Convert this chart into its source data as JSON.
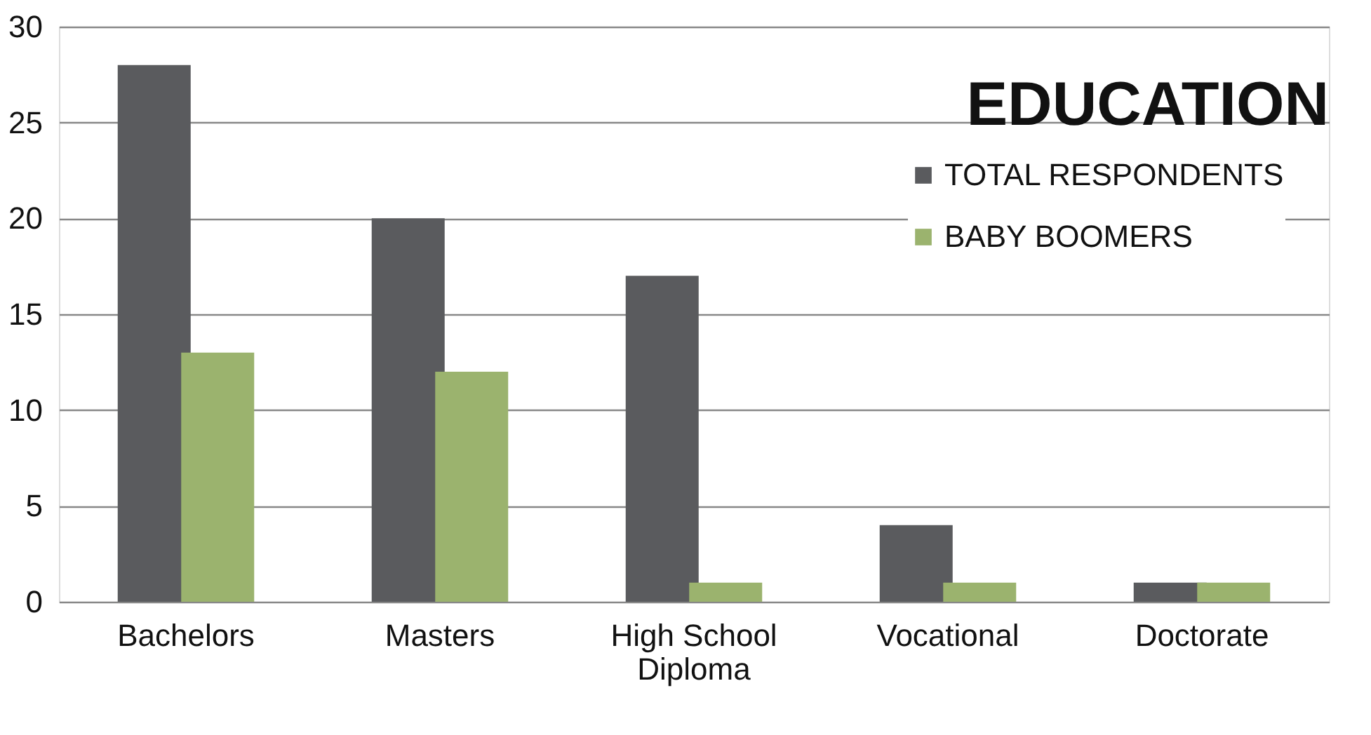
{
  "chart_data": {
    "type": "bar",
    "title": "EDUCATION",
    "categories": [
      "Bachelors",
      "Masters",
      "High School Diploma",
      "Vocational",
      "Doctorate"
    ],
    "series": [
      {
        "name": "TOTAL RESPONDENTS",
        "color": "#5a5b5e",
        "values": [
          28,
          20,
          17,
          4,
          1
        ]
      },
      {
        "name": "BABY BOOMERS",
        "color": "#9bb36e",
        "values": [
          13,
          12,
          1,
          1,
          1
        ]
      }
    ],
    "ylim": [
      0,
      30
    ],
    "yticks": [
      0,
      5,
      10,
      15,
      20,
      25,
      30
    ],
    "grid": "y",
    "legend": "top right"
  }
}
